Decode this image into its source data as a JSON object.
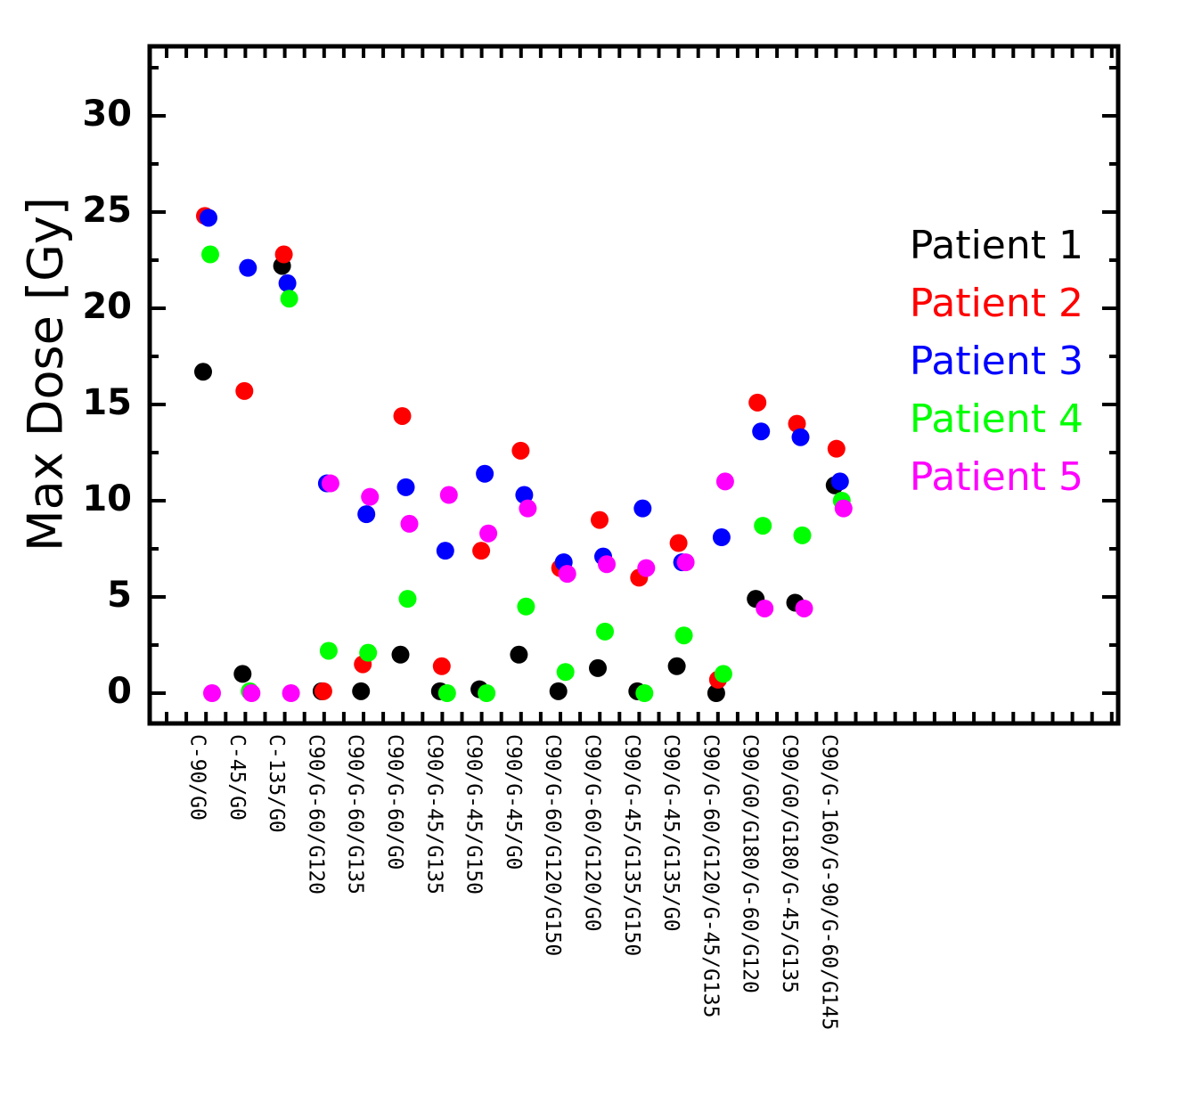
{
  "chart_data": {
    "type": "scatter",
    "ylabel": "Max Dose [Gy]",
    "ylim": [
      -1.5,
      33
    ],
    "yticks": [
      0,
      5,
      10,
      15,
      20,
      25,
      30
    ],
    "ytick_labels": [
      "0",
      "5",
      "10",
      "15",
      "20",
      "25",
      "30"
    ],
    "legend_position": "right",
    "grid": false,
    "categories": [
      "C-90/G0",
      "C-45/G0",
      "C-135/G0",
      "C90/G-60/G120",
      "C90/G-60/G135",
      "C90/G-60/G0",
      "C90/G-45/G135",
      "C90/G-45/G150",
      "C90/G-45/G0",
      "C90/G-60/G120/G150",
      "C90/G-60/G120/G0",
      "C90/G-45/G135/G150",
      "C90/G-45/G135/G0",
      "C90/G-60/G120/G-45/G135",
      "C90/G0/G180/G-60/G120",
      "C90/G0/G180/G-45/G135",
      "C90/G-160/G-90/G-60/G145"
    ],
    "series": [
      {
        "name": "Patient 1",
        "color": "#000000",
        "values": [
          16.7,
          1.0,
          22.2,
          0.1,
          0.1,
          2.0,
          0.1,
          0.2,
          2.0,
          0.1,
          1.3,
          0.1,
          1.4,
          0.0,
          4.9,
          4.7,
          10.8
        ]
      },
      {
        "name": "Patient 2",
        "color": "#ff0000",
        "values": [
          24.8,
          15.7,
          22.8,
          0.1,
          1.5,
          14.4,
          1.4,
          7.4,
          12.6,
          6.5,
          9.0,
          6.0,
          7.8,
          0.7,
          15.1,
          14.0,
          12.7
        ]
      },
      {
        "name": "Patient 3",
        "color": "#0000ff",
        "values": [
          24.7,
          22.1,
          21.3,
          10.9,
          9.3,
          10.7,
          7.4,
          11.4,
          10.3,
          6.8,
          7.1,
          9.6,
          6.8,
          8.1,
          13.6,
          13.3,
          11.0
        ]
      },
      {
        "name": "Patient 4",
        "color": "#00ff00",
        "values": [
          22.8,
          0.1,
          20.5,
          2.2,
          2.1,
          4.9,
          0.0,
          0.0,
          4.5,
          1.1,
          3.2,
          0.0,
          3.0,
          1.0,
          8.7,
          8.2,
          10.0
        ]
      },
      {
        "name": "Patient 5",
        "color": "#ff00ff",
        "values": [
          0.0,
          0.0,
          0.0,
          10.9,
          10.2,
          8.8,
          10.3,
          8.3,
          9.6,
          6.2,
          6.7,
          6.5,
          6.8,
          11.0,
          4.4,
          4.4,
          9.6
        ]
      }
    ]
  }
}
